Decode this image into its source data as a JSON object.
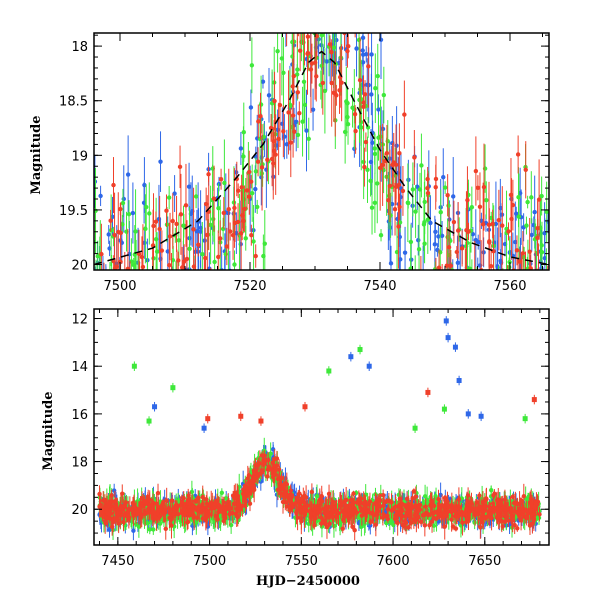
{
  "chart_data": [
    {
      "id": "top",
      "type": "scatter",
      "ylabel": "Magnitude",
      "xlabel": "",
      "xlim": [
        7496,
        7566
      ],
      "ylim": [
        20.05,
        17.88
      ],
      "y_inverted": true,
      "xticks": [
        7500,
        7520,
        7540,
        7560
      ],
      "yticks": [
        18,
        18.5,
        19,
        19.5,
        20
      ],
      "error_bars": true,
      "model_curve": {
        "style": "dashed",
        "color": "#000000",
        "points": [
          [
            7496,
            20.0
          ],
          [
            7505,
            19.85
          ],
          [
            7512,
            19.6
          ],
          [
            7518,
            19.2
          ],
          [
            7522,
            18.9
          ],
          [
            7526,
            18.5
          ],
          [
            7529,
            18.15
          ],
          [
            7531,
            18.05
          ],
          [
            7533,
            18.15
          ],
          [
            7536,
            18.5
          ],
          [
            7540,
            18.95
          ],
          [
            7544,
            19.3
          ],
          [
            7548,
            19.6
          ],
          [
            7554,
            19.8
          ],
          [
            7560,
            19.93
          ],
          [
            7566,
            20.0
          ]
        ]
      },
      "series": [
        {
          "color": "#2e67e8",
          "band": "blue"
        },
        {
          "color": "#3ee83a",
          "band": "green"
        },
        {
          "color": "#f0402a",
          "band": "red"
        }
      ]
    },
    {
      "id": "bottom",
      "type": "scatter",
      "ylabel": "Magnitude",
      "xlabel": "HJD−2450000",
      "xlim": [
        7437,
        7685
      ],
      "ylim": [
        21.5,
        11.6
      ],
      "y_inverted": true,
      "xticks": [
        7450,
        7500,
        7550,
        7600,
        7650
      ],
      "yticks": [
        12,
        14,
        16,
        18,
        20
      ],
      "error_bars": true,
      "outliers": [
        {
          "x": 7459,
          "y": 14.0,
          "color": "#3ee83a"
        },
        {
          "x": 7467,
          "y": 16.3,
          "color": "#3ee83a"
        },
        {
          "x": 7470,
          "y": 15.7,
          "color": "#2e67e8"
        },
        {
          "x": 7480,
          "y": 14.9,
          "color": "#3ee83a"
        },
        {
          "x": 7497,
          "y": 16.6,
          "color": "#2e67e8"
        },
        {
          "x": 7499,
          "y": 16.2,
          "color": "#f0402a"
        },
        {
          "x": 7517,
          "y": 16.1,
          "color": "#f0402a"
        },
        {
          "x": 7528,
          "y": 16.3,
          "color": "#f0402a"
        },
        {
          "x": 7552,
          "y": 15.7,
          "color": "#f0402a"
        },
        {
          "x": 7565,
          "y": 14.2,
          "color": "#3ee83a"
        },
        {
          "x": 7577,
          "y": 13.6,
          "color": "#2e67e8"
        },
        {
          "x": 7582,
          "y": 13.3,
          "color": "#3ee83a"
        },
        {
          "x": 7587,
          "y": 14.0,
          "color": "#2e67e8"
        },
        {
          "x": 7612,
          "y": 16.6,
          "color": "#3ee83a"
        },
        {
          "x": 7619,
          "y": 15.1,
          "color": "#f0402a"
        },
        {
          "x": 7628,
          "y": 15.8,
          "color": "#3ee83a"
        },
        {
          "x": 7629,
          "y": 12.1,
          "color": "#2e67e8"
        },
        {
          "x": 7630,
          "y": 12.8,
          "color": "#2e67e8"
        },
        {
          "x": 7634,
          "y": 13.2,
          "color": "#2e67e8"
        },
        {
          "x": 7636,
          "y": 14.6,
          "color": "#2e67e8"
        },
        {
          "x": 7641,
          "y": 16.0,
          "color": "#2e67e8"
        },
        {
          "x": 7648,
          "y": 16.1,
          "color": "#2e67e8"
        },
        {
          "x": 7672,
          "y": 16.2,
          "color": "#3ee83a"
        },
        {
          "x": 7677,
          "y": 15.4,
          "color": "#f0402a"
        }
      ],
      "series": [
        {
          "color": "#2e67e8",
          "band": "blue"
        },
        {
          "color": "#3ee83a",
          "band": "green"
        },
        {
          "color": "#f0402a",
          "band": "red"
        }
      ]
    }
  ]
}
